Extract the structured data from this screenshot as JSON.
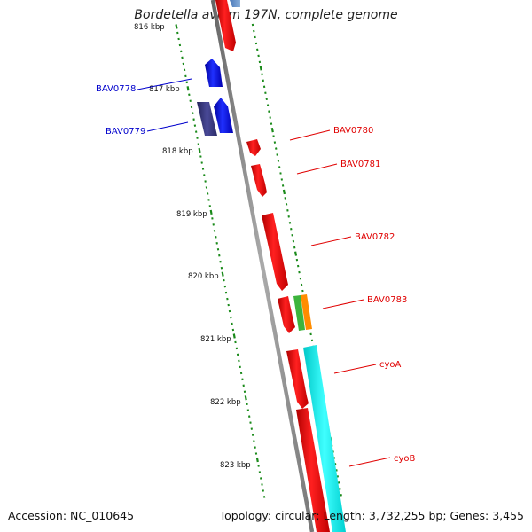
{
  "title": "Bordetella avium 197N, complete genome",
  "footer": {
    "accession": "Accession: NC_010645",
    "topology": "Topology: circular; Length: 3,732,255 bp; Genes: 3,455"
  },
  "colors": {
    "backbone": "#888888",
    "forward_gene": "#ff0000",
    "reverse_gene": "#0000ff",
    "reverse_gene_dark": "#3c3c8c",
    "cyan_feature": "#00ffff",
    "green_feature": "#3cb43c",
    "orange_feature": "#ff8c00",
    "tick": "#1a8a1a",
    "label_forward": "#e00000",
    "label_reverse": "#0000cc"
  },
  "scale_labels": [
    "816 kbp",
    "817 kbp",
    "818 kbp",
    "819 kbp",
    "820 kbp",
    "821 kbp",
    "822 kbp",
    "823 kbp"
  ],
  "gene_labels": [
    {
      "text": "BAV0778",
      "strand": "reverse"
    },
    {
      "text": "BAV0779",
      "strand": "reverse"
    },
    {
      "text": "BAV0780",
      "strand": "forward"
    },
    {
      "text": "BAV0781",
      "strand": "forward"
    },
    {
      "text": "BAV0782",
      "strand": "forward"
    },
    {
      "text": "BAV0783",
      "strand": "forward"
    },
    {
      "text": "cyoA",
      "strand": "forward"
    },
    {
      "text": "cyoB",
      "strand": "forward"
    }
  ]
}
